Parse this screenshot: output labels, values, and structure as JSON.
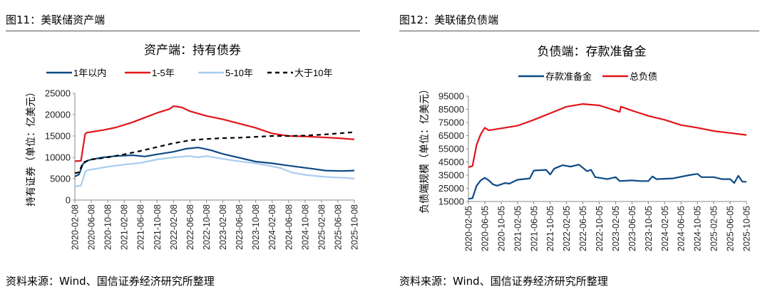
{
  "figures": [
    {
      "label": "图11：美联储资产端",
      "source": "资料来源：Wind、国信证券经济研究所整理"
    },
    {
      "label": "图12：美联储负债端",
      "source": "资料来源：Wind、国信证券经济研究所整理"
    }
  ],
  "chart_data": [
    {
      "type": "line",
      "title": "资产端：持有债券",
      "xlabel": "",
      "ylabel": "持有证券（单位：亿美元）",
      "ylim": [
        0,
        25000
      ],
      "yticks": [
        "0",
        "5000",
        "10000",
        "15000",
        "20000",
        "25000"
      ],
      "x_unit": "months since 2020-02",
      "xlim": [
        0,
        68
      ],
      "xticks": [
        "2020-02-08",
        "2020-06-08",
        "2020-10-08",
        "2021-02-08",
        "2021-06-08",
        "2021-10-08",
        "2022-02-08",
        "2022-06-08",
        "2022-10-08",
        "2023-02-08",
        "2023-06-08",
        "2023-10-08",
        "2024-02-08",
        "2024-06-08",
        "2024-10-08",
        "2025-02-08",
        "2025-06-08",
        "2025-10-08"
      ],
      "legend_position": "top",
      "series": [
        {
          "name": "1年以内",
          "color": "#0d4a85",
          "dash": false,
          "points": [
            [
              0,
              5500
            ],
            [
              1,
              6000
            ],
            [
              2,
              8500
            ],
            [
              3,
              9200
            ],
            [
              4,
              9500
            ],
            [
              7,
              10000
            ],
            [
              10,
              10300
            ],
            [
              14,
              10500
            ],
            [
              17,
              10200
            ],
            [
              20,
              10700
            ],
            [
              24,
              11300
            ],
            [
              27,
              12000
            ],
            [
              30,
              12300
            ],
            [
              33,
              11700
            ],
            [
              36,
              10800
            ],
            [
              40,
              9900
            ],
            [
              44,
              9000
            ],
            [
              48,
              8600
            ],
            [
              51,
              8200
            ],
            [
              54,
              7800
            ],
            [
              58,
              7300
            ],
            [
              61,
              6900
            ],
            [
              65,
              6800
            ],
            [
              68,
              6900
            ]
          ]
        },
        {
          "name": "1-5年",
          "color": "#e3141b",
          "dash": false,
          "points": [
            [
              0,
              9100
            ],
            [
              1.5,
              9200
            ],
            [
              2.5,
              15500
            ],
            [
              3,
              15800
            ],
            [
              7,
              16400
            ],
            [
              10,
              17000
            ],
            [
              14,
              18200
            ],
            [
              17,
              19300
            ],
            [
              20,
              20400
            ],
            [
              23,
              21300
            ],
            [
              24,
              22000
            ],
            [
              26,
              21700
            ],
            [
              28,
              20800
            ],
            [
              32,
              19700
            ],
            [
              36,
              18900
            ],
            [
              40,
              17900
            ],
            [
              44,
              16900
            ],
            [
              48,
              15600
            ],
            [
              52,
              15000
            ],
            [
              56,
              14900
            ],
            [
              60,
              14700
            ],
            [
              64,
              14500
            ],
            [
              68,
              14200
            ]
          ]
        },
        {
          "name": "5-10年",
          "color": "#a9ccef",
          "dash": false,
          "points": [
            [
              0,
              3200
            ],
            [
              1.5,
              3400
            ],
            [
              2.5,
              6500
            ],
            [
              3,
              7000
            ],
            [
              5,
              7300
            ],
            [
              8,
              7800
            ],
            [
              12,
              8300
            ],
            [
              16,
              8700
            ],
            [
              20,
              9500
            ],
            [
              24,
              10000
            ],
            [
              28,
              10300
            ],
            [
              30,
              10000
            ],
            [
              32,
              10300
            ],
            [
              35,
              9800
            ],
            [
              39,
              9200
            ],
            [
              43,
              8700
            ],
            [
              47,
              8100
            ],
            [
              50,
              7500
            ],
            [
              53,
              6400
            ],
            [
              56,
              5900
            ],
            [
              60,
              5500
            ],
            [
              63,
              5300
            ],
            [
              66,
              5200
            ],
            [
              68,
              5000
            ]
          ]
        },
        {
          "name": "大于10年",
          "color": "#000000",
          "dash": true,
          "points": [
            [
              0,
              6300
            ],
            [
              1,
              6500
            ],
            [
              2,
              8800
            ],
            [
              4,
              9500
            ],
            [
              8,
              10000
            ],
            [
              12,
              10700
            ],
            [
              16,
              11500
            ],
            [
              20,
              12400
            ],
            [
              24,
              13300
            ],
            [
              28,
              14000
            ],
            [
              32,
              14300
            ],
            [
              36,
              14500
            ],
            [
              40,
              14600
            ],
            [
              44,
              14800
            ],
            [
              48,
              15000
            ],
            [
              52,
              15000
            ],
            [
              56,
              15100
            ],
            [
              60,
              15300
            ],
            [
              64,
              15600
            ],
            [
              68,
              15900
            ]
          ]
        }
      ]
    },
    {
      "type": "line",
      "title": "负债端：存款准备金",
      "xlabel": "",
      "ylabel": "负债端规模（单位：亿美元）",
      "ylim": [
        15000,
        95000
      ],
      "yticks": [
        "15000",
        "25000",
        "35000",
        "45000",
        "55000",
        "65000",
        "75000",
        "85000",
        "95000"
      ],
      "x_unit": "months since 2020-02",
      "xlim": [
        0,
        68
      ],
      "xticks": [
        "2020-02-05",
        "2020-06-05",
        "2020-10-05",
        "2021-02-05",
        "2021-06-05",
        "2021-10-05",
        "2022-02-05",
        "2022-06-05",
        "2022-10-05",
        "2023-02-05",
        "2023-06-05",
        "2023-10-05",
        "2024-02-05",
        "2024-06-05",
        "2024-10-05",
        "2025-02-05",
        "2025-06-05",
        "2025-10-05"
      ],
      "legend_position": "top",
      "series": [
        {
          "name": "存款准备金",
          "color": "#0d4a85",
          "dash": false,
          "points": [
            [
              0,
              17000
            ],
            [
              1,
              17500
            ],
            [
              2,
              27000
            ],
            [
              3,
              31000
            ],
            [
              4,
              33000
            ],
            [
              5,
              31000
            ],
            [
              6,
              28000
            ],
            [
              7,
              27000
            ],
            [
              9,
              29000
            ],
            [
              10,
              28500
            ],
            [
              12,
              31500
            ],
            [
              15,
              32500
            ],
            [
              16,
              38500
            ],
            [
              19,
              39000
            ],
            [
              20,
              35500
            ],
            [
              21,
              40000
            ],
            [
              23,
              42500
            ],
            [
              25,
              41500
            ],
            [
              27,
              43000
            ],
            [
              29,
              38000
            ],
            [
              30,
              39000
            ],
            [
              31,
              33500
            ],
            [
              34,
              32000
            ],
            [
              36,
              33500
            ],
            [
              37,
              30500
            ],
            [
              40,
              31000
            ],
            [
              42,
              30500
            ],
            [
              44,
              30500
            ],
            [
              45,
              34000
            ],
            [
              46,
              32000
            ],
            [
              50,
              32500
            ],
            [
              54,
              35000
            ],
            [
              56,
              36000
            ],
            [
              57,
              33500
            ],
            [
              60,
              33500
            ],
            [
              62,
              32000
            ],
            [
              64,
              32000
            ],
            [
              65,
              29000
            ],
            [
              66,
              34500
            ],
            [
              67,
              30000
            ],
            [
              68,
              30000
            ]
          ]
        },
        {
          "name": "总负债",
          "color": "#e3141b",
          "dash": false,
          "points": [
            [
              0,
              41000
            ],
            [
              1,
              42000
            ],
            [
              2,
              58000
            ],
            [
              3,
              66000
            ],
            [
              4,
              71000
            ],
            [
              5,
              69000
            ],
            [
              8,
              70500
            ],
            [
              12,
              72500
            ],
            [
              16,
              77000
            ],
            [
              20,
              82000
            ],
            [
              24,
              87000
            ],
            [
              28,
              89000
            ],
            [
              32,
              88000
            ],
            [
              36,
              84000
            ],
            [
              37,
              83000
            ],
            [
              37.3,
              87000
            ],
            [
              40,
              84000
            ],
            [
              44,
              80000
            ],
            [
              48,
              77000
            ],
            [
              52,
              73000
            ],
            [
              56,
              71000
            ],
            [
              60,
              68500
            ],
            [
              64,
              67000
            ],
            [
              68,
              65500
            ]
          ]
        }
      ]
    }
  ]
}
